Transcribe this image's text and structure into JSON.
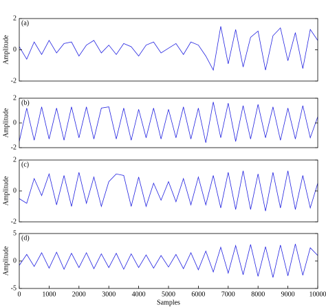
{
  "chart_data": [
    {
      "type": "line",
      "label": "(a)",
      "ylabel": "Amplitude",
      "color": "#2020e0",
      "x": [
        0,
        250,
        500,
        750,
        1000,
        1250,
        1500,
        1750,
        2000,
        2250,
        2500,
        2750,
        3000,
        3250,
        3500,
        3750,
        4000,
        4250,
        4500,
        4750,
        5000,
        5250,
        5500,
        5750,
        6000,
        6250,
        6500,
        6750,
        7000,
        7250,
        7500,
        7750,
        8000,
        8250,
        8500,
        8750,
        9000,
        9250,
        9500,
        9750,
        10000
      ],
      "values": [
        0.2,
        -0.6,
        0.5,
        -0.3,
        0.6,
        -0.2,
        0.4,
        0.5,
        -0.4,
        0.3,
        0.6,
        -0.2,
        0.3,
        -0.3,
        0.4,
        0.2,
        -0.4,
        0.3,
        0.5,
        -0.2,
        0.1,
        0.4,
        -0.3,
        0.5,
        0.3,
        -0.4,
        -1.3,
        1.5,
        -0.9,
        1.3,
        -1.1,
        0.8,
        1.2,
        -1.3,
        0.9,
        1.4,
        -0.7,
        1.1,
        -1.2,
        1.3,
        0.6
      ],
      "xlim": [
        0,
        10000
      ],
      "ylim": [
        -2,
        2
      ],
      "yticks": [
        -2,
        0,
        2
      ]
    },
    {
      "type": "line",
      "label": "(b)",
      "ylabel": "Amplitude",
      "color": "#2020e0",
      "x": [
        0,
        250,
        500,
        750,
        1000,
        1250,
        1500,
        1750,
        2000,
        2250,
        2500,
        2750,
        3000,
        3250,
        3500,
        3750,
        4000,
        4250,
        4500,
        4750,
        5000,
        5250,
        5500,
        5750,
        6000,
        6250,
        6500,
        6750,
        7000,
        7250,
        7500,
        7750,
        8000,
        8250,
        8500,
        8750,
        9000,
        9250,
        9500,
        9750,
        10000
      ],
      "values": [
        -1.5,
        1.2,
        -1.4,
        1.3,
        -1.3,
        1.2,
        -1.4,
        1.3,
        -1.2,
        1.3,
        -1.3,
        1.2,
        1.3,
        -1.3,
        1.2,
        -1.4,
        1.1,
        -1.2,
        1.2,
        -1.3,
        1.1,
        -1.2,
        1.3,
        -1.3,
        1.2,
        -1.6,
        1.7,
        -1.2,
        1.6,
        -1.5,
        1.4,
        -1.3,
        1.5,
        -1.2,
        1.3,
        -1.4,
        1.2,
        -1.3,
        1.4,
        -1.2,
        0.5
      ],
      "xlim": [
        0,
        10000
      ],
      "ylim": [
        -2,
        2
      ],
      "yticks": [
        -2,
        0,
        2
      ]
    },
    {
      "type": "line",
      "label": "(c)",
      "ylabel": "Amplitude",
      "color": "#2020e0",
      "x": [
        0,
        250,
        500,
        750,
        1000,
        1250,
        1500,
        1750,
        2000,
        2250,
        2500,
        2750,
        3000,
        3250,
        3500,
        3750,
        4000,
        4250,
        4500,
        4750,
        5000,
        5250,
        5500,
        5750,
        6000,
        6250,
        6500,
        6750,
        7000,
        7250,
        7500,
        7750,
        8000,
        8250,
        8500,
        8750,
        9000,
        9250,
        9500,
        9750,
        10000
      ],
      "values": [
        -0.5,
        -0.8,
        0.8,
        -0.3,
        1.1,
        -0.9,
        1.0,
        -1.0,
        1.2,
        -0.8,
        0.9,
        -1.0,
        0.6,
        1.1,
        1.0,
        -1.0,
        0.9,
        -1.0,
        0.5,
        -0.6,
        0.6,
        -0.7,
        0.8,
        -0.9,
        0.9,
        -0.9,
        1.0,
        -1.1,
        1.2,
        -1.2,
        1.3,
        -1.2,
        1.1,
        -1.3,
        1.2,
        -1.1,
        1.3,
        -1.2,
        1.0,
        -1.1,
        0.5
      ],
      "xlim": [
        0,
        10000
      ],
      "ylim": [
        -2,
        2
      ],
      "yticks": [
        -2,
        0,
        2
      ]
    },
    {
      "type": "line",
      "label": "(d)",
      "ylabel": "Amplitude",
      "xlabel": "Samples",
      "color": "#2020e0",
      "x": [
        0,
        250,
        500,
        750,
        1000,
        1250,
        1500,
        1750,
        2000,
        2250,
        2500,
        2750,
        3000,
        3250,
        3500,
        3750,
        4000,
        4250,
        4500,
        4750,
        5000,
        5250,
        5500,
        5750,
        6000,
        6250,
        6500,
        6750,
        7000,
        7250,
        7500,
        7750,
        8000,
        8250,
        8500,
        8750,
        9000,
        9250,
        9500,
        9750,
        10000
      ],
      "values": [
        -0.8,
        1.2,
        -1.0,
        1.5,
        -1.3,
        1.6,
        -1.5,
        1.4,
        -1.2,
        1.5,
        -1.4,
        1.3,
        -1.2,
        1.4,
        -1.5,
        1.3,
        -1.2,
        1.1,
        -1.3,
        1.0,
        -1.1,
        1.2,
        -1.4,
        1.5,
        -1.6,
        1.8,
        -2.0,
        2.5,
        -2.2,
        2.8,
        -2.5,
        3.0,
        -2.8,
        2.6,
        -3.0,
        2.9,
        -2.7,
        3.1,
        -2.6,
        2.4,
        1.0
      ],
      "xlim": [
        0,
        10000
      ],
      "xticks": [
        0,
        1000,
        2000,
        3000,
        4000,
        5000,
        6000,
        7000,
        8000,
        9000,
        10000
      ],
      "ylim": [
        -5,
        5
      ],
      "yticks": [
        -5,
        0,
        5
      ]
    }
  ]
}
